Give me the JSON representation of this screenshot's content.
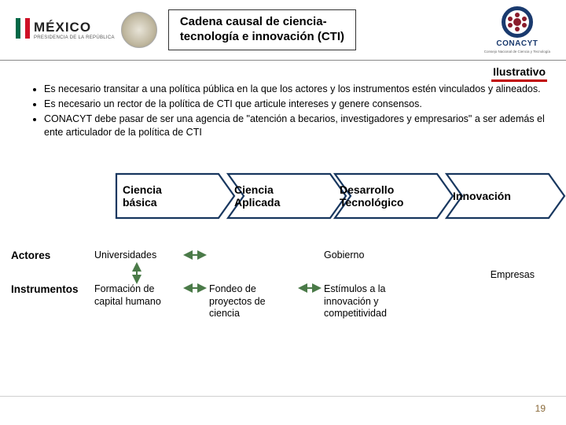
{
  "header": {
    "mexico_label": "MÉXICO",
    "mexico_sub": "PRESIDENCIA DE LA REPÚBLICA",
    "title_line1": "Cadena causal de ciencia-",
    "title_line2": "tecnología e innovación (CTI)",
    "conacyt": "CONACYT",
    "conacyt_sub": "Consejo Nacional de Ciencia y Tecnología"
  },
  "illustrative_label": "Ilustrativo",
  "bullets": [
    "Es necesario transitar a una política pública en la que los actores y los instrumentos estén vinculados y alineados.",
    "Es necesario un rector de la política de CTI que articule intereses y genere consensos.",
    "CONACYT debe pasar de ser una agencia de \"atención a becarios, investigadores y empresarios\" a ser además el ente articulador de la política de CTI"
  ],
  "chain": {
    "stages": [
      "Ciencia básica",
      "Ciencia Aplicada",
      "Desarrollo Tecnológico",
      "Innovación"
    ],
    "stage_positions_x": [
      148,
      290,
      426,
      568
    ],
    "stage_width": 130,
    "arrow_fill": "#18375f",
    "arrow_stroke": "#18375f",
    "height": 56,
    "notch": 20
  },
  "rows": {
    "actors_label": "Actores",
    "instruments_label": "Instrumentos",
    "actors": [
      "Universidades",
      "",
      "Gobierno",
      ""
    ],
    "empresas": "Empresas",
    "instruments": [
      "Formación de capital humano",
      "Fondeo de proyectos de ciencia",
      "Estímulos a la innovación y competitividad",
      ""
    ]
  },
  "arrow_color": "#4a7a48",
  "page_number": "19",
  "colors": {
    "illus_underline": "#c00000",
    "conacyt_blue": "#1a3a6e",
    "conacyt_red": "#8a1c2c"
  }
}
